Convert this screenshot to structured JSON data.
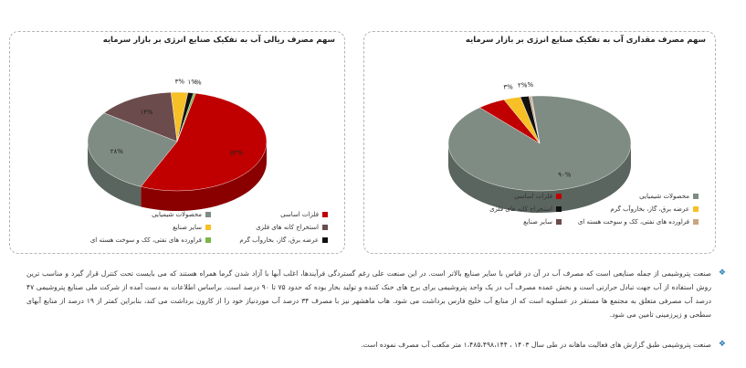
{
  "chart_data": [
    {
      "type": "pie",
      "title": "سهم مصرف ریالی آب به تفکیک صنایع انرژی بر بازار سرمایه",
      "slices": [
        {
          "name": "فلزات اساسی",
          "value": 53,
          "label": "۵۳%",
          "color": "#c00000"
        },
        {
          "name": "محصولات شیمیایی",
          "value": 28,
          "label": "۲۸%",
          "color": "#7f8c84"
        },
        {
          "name": "استخراج کانه های فلزی",
          "value": 14,
          "label": "۱۴%",
          "color": "#6b4b4b"
        },
        {
          "name": "سایر صنایع",
          "value": 3,
          "label": "۳%",
          "color": "#f6c026"
        },
        {
          "name": "عرضه برق، گاز، بخاروآب گرم",
          "value": 1,
          "label": "۱%",
          "color": "#111111"
        },
        {
          "name": "فراورده های نفتی، کک و سوخت هسته ای",
          "value": 0.4,
          "label": "۰%",
          "color": "#7ab648"
        }
      ],
      "legend_position": "bottom"
    },
    {
      "type": "pie",
      "title": "سهم مصرف مقداری آب به تفکیک صنایع انرژی بر بازار سرمایه",
      "slices": [
        {
          "name": "محصولات شیمیایی",
          "value": 90,
          "label": "۹۰%",
          "color": "#7f8c84"
        },
        {
          "name": "فلزات اساسی",
          "value": 5,
          "label": "",
          "color": "#c00000"
        },
        {
          "name": "عرضه برق، گاز، بخاروآب گرم",
          "value": 3,
          "label": "۳%",
          "color": "#f6c026"
        },
        {
          "name": "استخراج کانه های فلزی",
          "value": 1.5,
          "label": "۲%",
          "color": "#111111"
        },
        {
          "name": "فراورده های نفتی، کک و سوخت هسته ای",
          "value": 0.4,
          "label": "۰%",
          "color": "#c8a682"
        },
        {
          "name": "سایر صنایع",
          "value": 0.1,
          "label": "",
          "color": "#6b4b4b"
        }
      ],
      "legend_position": "bottom"
    }
  ],
  "notes": [
    "صنعت پتروشیمی از جمله صنایعی است که مصرف آب در آن در قیاس با سایر صنایع بالاتر است. در این صنعت علی رغم گستردگی فرآیندها، اغلب آبها با آزاد شدن گرما همراه هستند که می بایست تحت کنترل قرار گیرد و مناسب ترین روش استفاده از آب جهت تبادل حرارتی است و بخش عمده مصرف آب در یک واحد پتروشیمی برای برج های خنک کننده و تولید بخار بوده که حدود ۷۵ تا ۹۰ درصد است. براساس اطلاعات به دست آمده از شرکت ملی صنایع پتروشیمی ۴۷ درصد آب مصرفی متعلق به مجتمع ها مستقر در عسلویه است که از منابع آب خلیج فارس برداشت می شود. هاب ماهشهر نیز با مصرف ۳۴ درصد آب موردنیاز خود را از کارون برداشت می کند، بنابراین کمتر از ۱۹ درصد از منابع آبهای سطحی و زیرزمینی تامین می شود.",
    "صنعت پتروشیمی طبق گزارش های فعالیت ماهانه در طی سال ۱۴۰۳ ، ۱،۴۸۵،۴۹۸،۱۴۴ متر مکعب آب مصرف نموده است."
  ]
}
